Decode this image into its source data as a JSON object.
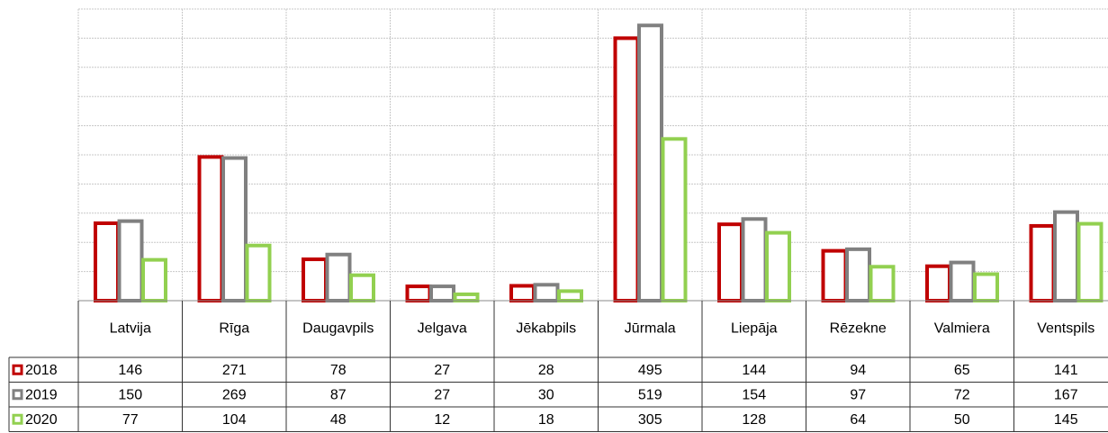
{
  "chart_data": {
    "type": "bar",
    "categories": [
      "Latvija",
      "Rīga",
      "Daugavpils",
      "Jelgava",
      "Jēkabpils",
      "Jūrmala",
      "Liepāja",
      "Rēzekne",
      "Valmiera",
      "Ventspils"
    ],
    "series": [
      {
        "name": "2018",
        "color": "#c00000",
        "values": [
          146,
          271,
          78,
          27,
          28,
          495,
          144,
          94,
          65,
          141
        ]
      },
      {
        "name": "2019",
        "color": "#808080",
        "values": [
          150,
          269,
          87,
          27,
          30,
          519,
          154,
          97,
          72,
          167
        ]
      },
      {
        "name": "2020",
        "color": "#92d050",
        "values": [
          77,
          104,
          48,
          12,
          18,
          305,
          128,
          64,
          50,
          145
        ]
      }
    ],
    "ylim": [
      0,
      550
    ],
    "yticks": [
      0,
      55,
      110,
      165,
      220,
      275,
      330,
      385,
      440,
      495,
      550
    ],
    "grid": true
  }
}
